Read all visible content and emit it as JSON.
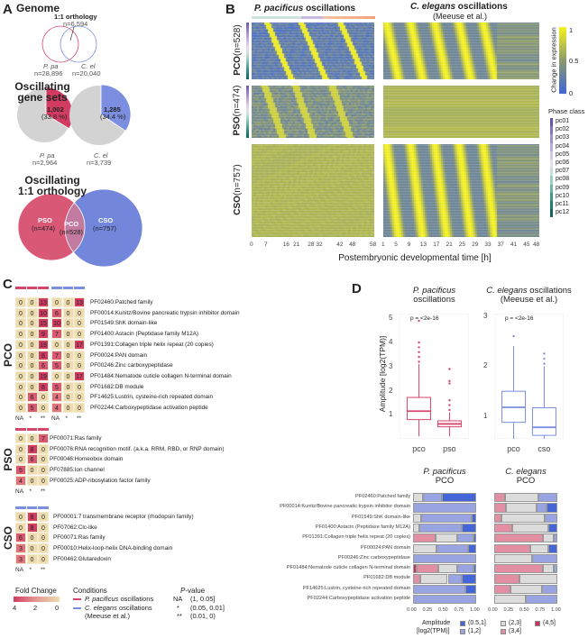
{
  "panels": {
    "A": "A",
    "B": "B",
    "C": "C",
    "D": "D"
  },
  "colors": {
    "pp": "#d6456c",
    "ce": "#7b8ee0",
    "pco": "#c77ba2",
    "grey": "#cfcfcf"
  },
  "panelA": {
    "genome_title": "Genome",
    "orthology_label": "1:1 orthology",
    "orthology_n": "n=6,594",
    "pp_label": "P. pa",
    "pp_n": "n=28,896",
    "ce_label": "C. el",
    "ce_n": "n=20,040",
    "osc_title_1": "Oscillating",
    "osc_title_2": "gene sets",
    "pp_pie": {
      "value": "1,002",
      "pct": "(33.8 %)",
      "total": "n=2,964",
      "label": "P. pa",
      "fraction": 0.338
    },
    "ce_pie": {
      "value": "1,285",
      "pct": "(34.4 %)",
      "total": "n=3,739",
      "label": "C. el",
      "fraction": 0.344
    },
    "ortho_title_1": "Oscillating",
    "ortho_title_2": "1:1 orthology",
    "pso": "PSO",
    "pso_n": "(n=474)",
    "pco": "PCO",
    "pco_n": "(n=528)",
    "cso": "CSO",
    "cso_n": "(n=757)"
  },
  "panelB": {
    "left_title_it": "P. pacificus",
    "left_title": " oscillations",
    "right_title_it": "C. elegans",
    "right_title": " oscillations",
    "right_sub": "(Meeuse et al.)",
    "rows": [
      {
        "name": "PCO",
        "n": "(n=528)"
      },
      {
        "name": "PSO",
        "n": "(n=474)"
      },
      {
        "name": "CSO",
        "n": "(n=757)"
      }
    ],
    "left_ticks": [
      "0",
      "7",
      "16",
      "21",
      "28",
      "32",
      "42",
      "48",
      "58"
    ],
    "right_ticks": [
      "1",
      "5",
      "9",
      "13",
      "17",
      "21",
      "25",
      "29",
      "33",
      "37",
      "41",
      "45",
      "48"
    ],
    "xlabel": "Postembryonic developmental time [h]",
    "colorbar_label": "Change in expression",
    "colorbar_ticks": [
      "1",
      "0.5",
      "0"
    ],
    "colorscale": [
      "#3f66d6",
      "#8c9a6c",
      "#f6f21c"
    ],
    "phase_title": "Phase class",
    "phase_classes": [
      "pc01",
      "pc02",
      "pc03",
      "pc04",
      "pc05",
      "pc06",
      "pc07",
      "pc08",
      "pc09",
      "pc10",
      "pc11",
      "pc12"
    ],
    "phase_colors": [
      "#6d56a8",
      "#8a72bc",
      "#a48fcb",
      "#bfaad8",
      "#d7c7e6",
      "#e4dcef",
      "#c8e0dc",
      "#9fcdc5",
      "#6db3a9",
      "#3f968c",
      "#1f7c72",
      "#0f6660"
    ]
  },
  "panelC": {
    "groups": [
      {
        "name": "PCO",
        "two": true,
        "rows": [
          {
            "pp": [
              0,
              0,
              13
            ],
            "ce": [
              0,
              0,
              13
            ],
            "label": "PF02460:Patched family"
          },
          {
            "pp": [
              0,
              0,
              10
            ],
            "ce": [
              6,
              0,
              0
            ],
            "label": "PF00014:Kunitz/Bovine pancreatic trypsin inhibitor domain"
          },
          {
            "pp": [
              0,
              0,
              15
            ],
            "ce": [
              10,
              0,
              0
            ],
            "label": "PF01549:ShK domain-like"
          },
          {
            "pp": [
              0,
              0,
              9
            ],
            "ce": [
              7,
              0,
              0
            ],
            "label": "PF01400:Astacin (Peptidase family M12A)"
          },
          {
            "pp": [
              0,
              0,
              19
            ],
            "ce": [
              0,
              0,
              17
            ],
            "label": "PF01391:Collagen triple helix repeat (20 copies)"
          },
          {
            "pp": [
              0,
              0,
              8
            ],
            "ce": [
              7,
              0,
              0
            ],
            "label": "PF00024:PAN domain"
          },
          {
            "pp": [
              0,
              0,
              6
            ],
            "ce": [
              5,
              0,
              0
            ],
            "label": "PF00246:Zinc carboxypeptidase"
          },
          {
            "pp": [
              0,
              0,
              19
            ],
            "ce": [
              0,
              0,
              17
            ],
            "label": "PF01484:Nematode cuticle collagen N-terminal domain"
          },
          {
            "pp": [
              0,
              0,
              8
            ],
            "ce": [
              5,
              0,
              0
            ],
            "label": "PF01682:DB module"
          },
          {
            "pp": [
              0,
              6,
              0
            ],
            "ce": [
              4,
              0,
              0
            ],
            "label": "PF14625:Lustrin, cysteine-rich repeated domain"
          },
          {
            "pp": [
              0,
              5,
              0
            ],
            "ce": [
              4,
              0,
              0
            ],
            "label": "PF02244:Carboxypeptidase activation peptide"
          }
        ]
      },
      {
        "name": "PSO",
        "cond": "pp",
        "rows": [
          {
            "v": [
              0,
              0,
              7
            ],
            "label": "PF00071:Ras family"
          },
          {
            "v": [
              0,
              8,
              0
            ],
            "label": "PF00076:RNA recognition motif. (a.k.a. RRM, RBD, or RNP domain)"
          },
          {
            "v": [
              0,
              6,
              0
            ],
            "label": "PF00046:Homeobox domain"
          },
          {
            "v": [
              5,
              0,
              0
            ],
            "label": "PF07885:Ion channel"
          },
          {
            "v": [
              4,
              0,
              0
            ],
            "label": "PF00025:ADP-ribosylation factor family"
          }
        ]
      },
      {
        "name": "CSO",
        "cond": "ce",
        "rows": [
          {
            "v": [
              0,
              8,
              0
            ],
            "label": "PF00001:7 transmembrane receptor (rhodopsin family)"
          },
          {
            "v": [
              0,
              8,
              0
            ],
            "label": "PF07062:Clc-like"
          },
          {
            "v": [
              6,
              0,
              0
            ],
            "label": "PF00071:Ras family"
          },
          {
            "v": [
              3,
              0,
              0
            ],
            "label": "PF00010:Helix-loop-helix DNA-binding domain"
          },
          {
            "v": [
              3,
              0,
              0
            ],
            "label": "PF00462:Glutaredoxin"
          }
        ]
      }
    ],
    "pval_cols": [
      "NA",
      "*",
      "**"
    ],
    "legend": {
      "fold_title": "Fold Change",
      "fold_ticks": [
        "4",
        "2",
        "0"
      ],
      "cond_title": "Conditions",
      "cond_pp_it": "P. pacificus",
      "cond_pp": " oscillations",
      "cond_ce_it": "C. elegans",
      "cond_ce": " oscillations",
      "cond_ce_sub": "(Meeuse et al.)",
      "p_title_it": "P",
      "p_title": "-value",
      "p_rows": [
        {
          "k": "NA",
          "v": "(1, 0.05]"
        },
        {
          "k": "*",
          "v": "(0.05, 0.01]"
        },
        {
          "k": "**",
          "v": "(0.01, 0)"
        }
      ]
    }
  },
  "chart_data": [
    {
      "type": "box",
      "title_it": "P. pacificus",
      "title": "oscillations",
      "ylabel": "Amplitude [log2(TPM)]",
      "ylim": [
        0,
        5.2
      ],
      "yticks": [
        "1",
        "2",
        "3",
        "4",
        "5"
      ],
      "pvalue": "p = <2e-16",
      "color": "#d6456c",
      "boxes": [
        {
          "category": "pco",
          "low": 0.1,
          "q1": 0.8,
          "median": 1.15,
          "q3": 1.72,
          "high": 3.1,
          "outliers": [
            3.2,
            3.4,
            3.6,
            3.8,
            4.0,
            4.9
          ]
        },
        {
          "category": "pso",
          "low": 0.1,
          "q1": 0.5,
          "median": 0.62,
          "q3": 0.75,
          "high": 1.1,
          "outliers": [
            1.2,
            1.4,
            1.6,
            2.3,
            2.4,
            2.9
          ]
        }
      ]
    },
    {
      "type": "box",
      "title_it": "C. elegans",
      "title": "oscillations",
      "subtitle": "(Meeuse et al.)",
      "ylim": [
        0.55,
        3.05
      ],
      "yticks": [
        "1",
        "2",
        "3"
      ],
      "pvalue": "p = <2e-16",
      "color": "#7b8ee0",
      "boxes": [
        {
          "category": "pco",
          "low": 0.3,
          "q1": 0.88,
          "median": 1.18,
          "q3": 1.5,
          "high": 2.4,
          "outliers": [
            2.6
          ]
        },
        {
          "category": "cso",
          "low": 0.3,
          "q1": 0.62,
          "median": 0.78,
          "q3": 1.17,
          "high": 2.0,
          "outliers": [
            2.05,
            2.15,
            2.25
          ]
        }
      ]
    },
    {
      "type": "stacked-bar",
      "orientation": "horizontal",
      "xlim": [
        0,
        1
      ],
      "xticks": [
        "0.00",
        "0.25",
        "0.50",
        "0.75",
        "1.00"
      ],
      "legend_title": "Amplitude",
      "legend_sub": "[log2(TPM)]",
      "segments": [
        {
          "name": "(4,5]",
          "color": "#c9345e"
        },
        {
          "name": "(3,4]",
          "color": "#e28fa3"
        },
        {
          "name": "(2,3]",
          "color": "#dcdcdc"
        },
        {
          "name": "(1,2]",
          "color": "#99a5e3"
        },
        {
          "name": "(0.5,1]",
          "color": "#4566d8"
        }
      ],
      "categories": [
        "PF02460:Patched family",
        "PF00014:Kunitz/Bovine pancreatic trypsin inhibitor domain",
        "PF01549:ShK domain-like",
        "PF01400:Astacin (Peptidase family M12A)",
        "PF01391:Collagen triple helix repeat (20 copies)",
        "PF00024:PAN domain",
        "PF00246:Zinc carboxypeptidase",
        "PF01484:Nematode cuticle collagen N-terminal domain",
        "PF01682:DB module",
        "PF14625:Lustrin, cysteine-rich repeated domain",
        "PF02244:Carboxypeptidase activation peptide"
      ],
      "panels": [
        {
          "title_it": "P. pacificus",
          "title": "PCO",
          "values": [
            [
              0,
              0,
              0.15,
              0.3,
              0.55
            ],
            [
              0,
              0,
              0,
              1,
              0
            ],
            [
              0,
              0,
              0.13,
              0.8,
              0.07
            ],
            [
              0,
              0,
              0.1,
              0.67,
              0.23
            ],
            [
              0,
              0.35,
              0.35,
              0.25,
              0.05
            ],
            [
              0,
              0,
              0.37,
              0.5,
              0.13
            ],
            [
              0,
              0,
              0,
              1,
              0
            ],
            [
              0.05,
              0.35,
              0.3,
              0.25,
              0.05
            ],
            [
              0,
              0.11,
              0.44,
              0.22,
              0.23
            ],
            [
              0,
              0,
              0,
              0.83,
              0.17
            ],
            [
              0,
              0,
              0,
              1,
              0
            ]
          ]
        },
        {
          "title_it": "C. elegans",
          "title": "PCO",
          "values": [
            [
              0,
              0.17,
              0.53,
              0.3,
              0
            ],
            [
              0,
              0.18,
              0.49,
              0.16,
              0.17
            ],
            [
              0,
              0.11,
              0.69,
              0.2,
              0
            ],
            [
              0,
              0.29,
              0.57,
              0,
              0.14
            ],
            [
              0,
              0.77,
              0.17,
              0.06,
              0
            ],
            [
              0,
              0.57,
              0.29,
              0,
              0.14
            ],
            [
              0,
              0,
              0.6,
              0.4,
              0
            ],
            [
              0,
              0.77,
              0.17,
              0.06,
              0
            ],
            [
              0,
              0.4,
              0.6,
              0,
              0
            ],
            [
              0,
              0.25,
              0.5,
              0.25,
              0
            ],
            [
              0,
              0,
              0.5,
              0.5,
              0
            ]
          ]
        }
      ]
    }
  ]
}
